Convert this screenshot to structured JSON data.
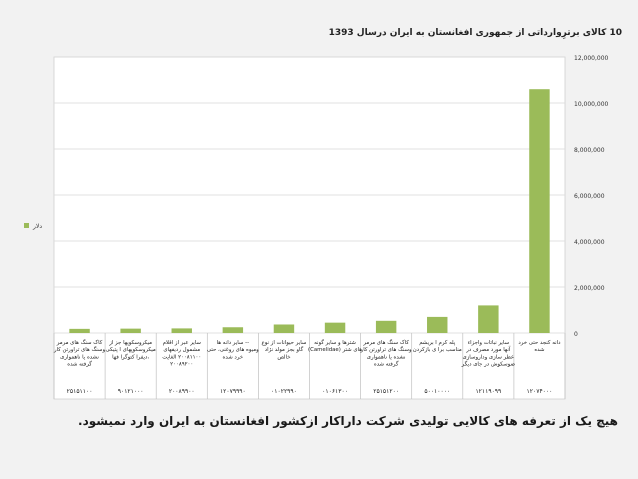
{
  "slide": {
    "footer_note": "هیچ یک از تعرفه های کالایی تولیدی شرکت داراکار ازکشور افغانستان به ایران وارد نمیشود."
  },
  "chart_data": {
    "type": "bar",
    "title": "10 کالای برترِوارداتی از جمهوری افغانستان به ایران درسال 1393",
    "legend": {
      "position": "left",
      "label": "دلار",
      "color": "#9bbb59"
    },
    "ylim": [
      0,
      12000000
    ],
    "yticks": [
      "0",
      "2,000,000",
      "4,000,000",
      "6,000,000",
      "8,000,000",
      "10,000,000",
      "12,000,000"
    ],
    "grid": true,
    "bar_color": "#9bbb59",
    "categories": [
      {
        "label": "کاک سنگ های مرمر وسنگ های تراورتن کار نشده یا ناهمواری گرفته شده",
        "value_label": "۲۵۱۵۱۱۰۰"
      },
      {
        "label": "میکروسکوپها جز از میکروسکوپهای ا پتیکی ،دیفرا کتوگرا فها",
        "value_label": "۹۰۱۲۱۰۰۰"
      },
      {
        "label": "سایر عبر از اقلام مشمول ردیفهای ۲۰۰۸۱۱۰۰ الغایت ۲۰۰۸۹۲۰۰",
        "value_label": "۲۰۰۸۹۹۰۰"
      },
      {
        "label": "-- سایر دانه ها ومیوه های روغنی، حتی خرد شده",
        "value_label": "۱۲۰۷۹۹۹۰"
      },
      {
        "label": "سایر حیوانات از نوع گاو بجز مولد نژاد خالص",
        "value_label": "۰۱۰۲۲۹۹۰"
      },
      {
        "label": "شترها و سایر گونه های شتر (Camelidae)",
        "value_label": "۰۱۰۶۱۳۰۰"
      },
      {
        "label": "کاک سنگ های مرمر وسنگ های تراورتن کار نشده یا ناهمواری گرفته شده",
        "value_label": "۲۵۱۵۱۲۰۰"
      },
      {
        "label": "پله کرم ا بریشم مناسب برا ی بازکردن",
        "value_label": "۵۰۰۱۰۰۰۰"
      },
      {
        "label": "سایر نباتات واجزاء آنها مورد مصرف در عطر سازی وداروسازی ضوسکوش در جای دیگر",
        "value_label": "۱۲۱۱۹۰۹۹"
      },
      {
        "label": "دانه کنجد حتی خرد شده",
        "value_label": "۱۲۰۷۴۰۰۰"
      }
    ],
    "values": [
      180000,
      190000,
      200000,
      250000,
      370000,
      450000,
      530000,
      700000,
      1200000,
      10600000
    ]
  }
}
